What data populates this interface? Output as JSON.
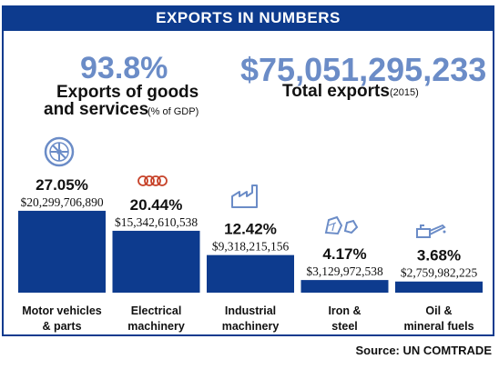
{
  "header": {
    "title": "EXPORTS IN NUMBERS"
  },
  "stats": {
    "exports_pct_gdp": {
      "value": "93.8%",
      "label_line1": "Exports of goods",
      "label_line2": "and services",
      "label_note": "(% of GDP)"
    },
    "total_exports": {
      "value": "$75,051,295,233",
      "label": "Total exports",
      "label_note": "(2015)"
    }
  },
  "colors": {
    "accent": "#0d3b8e",
    "stat_text": "#6b8cc7"
  },
  "chart_data": {
    "type": "bar",
    "categories": [
      "Motor vehicles & parts",
      "Electrical machinery",
      "Industrial machinery",
      "Iron & steel",
      "Oil & mineral fuels"
    ],
    "category_lines": [
      [
        "Motor vehicles",
        "& parts"
      ],
      [
        "Electrical",
        "machinery"
      ],
      [
        "Industrial",
        "machinery"
      ],
      [
        "Iron &",
        "steel"
      ],
      [
        "Oil &",
        "mineral fuels"
      ]
    ],
    "values": [
      27.05,
      20.44,
      12.42,
      4.17,
      3.68
    ],
    "percent_labels": [
      "27.05%",
      "20.44%",
      "12.42%",
      "4.17%",
      "3.68%"
    ],
    "value_labels": [
      "$20,299,706,890",
      "$15,342,610,538",
      "$9,318,215,156",
      "$3,129,972,538",
      "$2,759,982,225"
    ],
    "icons": [
      "wheel-icon",
      "coil-icon",
      "factory-icon",
      "ore-rocks-icon",
      "oil-can-icon"
    ],
    "ylim": [
      0,
      30
    ]
  },
  "source": "Source: UN COMTRADE"
}
